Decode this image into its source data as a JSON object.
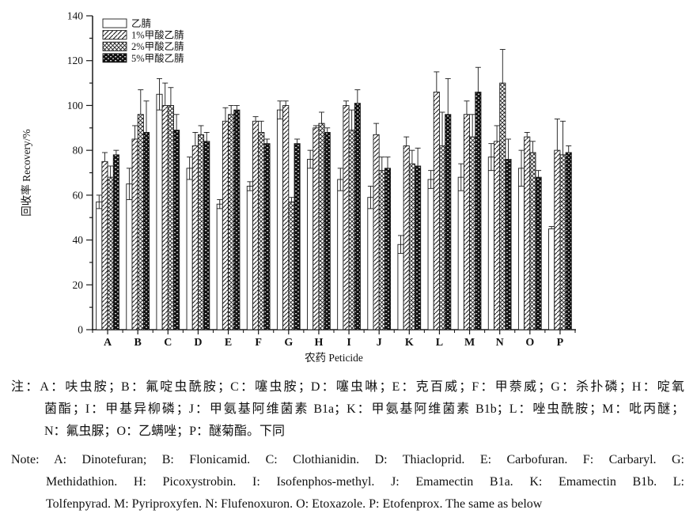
{
  "colors": {
    "ink": "#1a1a1a",
    "background": "#ffffff"
  },
  "chart_data": {
    "type": "bar",
    "title": "",
    "xlabel": "农药 Peticide",
    "ylabel": "回收率 Recovery/%",
    "ylim": [
      0,
      140
    ],
    "ytick_interval": 20,
    "ytick_minor_interval": 10,
    "grid": "off",
    "legend_position": "top-left-inside",
    "categories": [
      "A",
      "B",
      "C",
      "D",
      "E",
      "F",
      "G",
      "H",
      "I",
      "J",
      "K",
      "L",
      "M",
      "N",
      "O",
      "P"
    ],
    "series": [
      {
        "name": "乙腈",
        "pattern": "plain",
        "values": [
          57,
          65,
          105,
          72,
          56,
          64,
          98,
          76,
          67,
          59,
          38,
          67,
          68,
          77,
          72,
          45
        ],
        "errors": [
          3,
          7,
          7,
          5,
          2,
          2,
          4,
          4,
          5,
          5,
          4,
          4,
          6,
          6,
          8,
          1
        ]
      },
      {
        "name": "1%甲酸乙腈",
        "pattern": "diagonal",
        "values": [
          75,
          85,
          100,
          82,
          93,
          93,
          100,
          90,
          100,
          87,
          82,
          106,
          96,
          84,
          86,
          80
        ],
        "errors": [
          4,
          6,
          10,
          6,
          6,
          2,
          2,
          1,
          2,
          5,
          4,
          9,
          6,
          7,
          2,
          14
        ]
      },
      {
        "name": "2%甲酸乙腈",
        "pattern": "crosshatch",
        "values": [
          68,
          96,
          100,
          87,
          96,
          88,
          57,
          92,
          89,
          71,
          74,
          82,
          86,
          110,
          79,
          78
        ],
        "errors": [
          5,
          11,
          8,
          4,
          4,
          5,
          2,
          5,
          9,
          6,
          6,
          15,
          10,
          15,
          5,
          15
        ]
      },
      {
        "name": "5%甲酸乙腈",
        "pattern": "dense-dark",
        "values": [
          78,
          88,
          89,
          84,
          98,
          83,
          83,
          88,
          101,
          72,
          73,
          96,
          106,
          76,
          68,
          79
        ],
        "errors": [
          2,
          14,
          7,
          4,
          2,
          2,
          2,
          2,
          6,
          5,
          8,
          16,
          11,
          9,
          3,
          3
        ]
      }
    ]
  },
  "notes": {
    "cn_lines": [
      "注：A：呋虫胺；B：氟啶虫酰胺；C：噻虫胺；D：噻虫啉；E：克百威；F：甲萘威；G：杀扑磷；H：啶氧",
      "菌酯；I：甲基异柳磷；J：甲氨基阿维菌素 B1a；K：甲氨基阿维菌素 B1b；L：唑虫酰胺；M：吡丙醚；",
      "N：氟虫脲；O：乙螨唑；P：醚菊酯。下同"
    ],
    "en_lines": [
      "Note: A: Dinotefuran; B: Flonicamid. C: Clothianidin. D: Thiacloprid. E: Carbofuran. F: Carbaryl. G:",
      "Methidathion. H: Picoxystrobin. I: Isofenphos-methyl. J: Emamectin B1a. K: Emamectin B1b. L:",
      "Tolfenpyrad. M: Pyriproxyfen. N: Flufenoxuron. O: Etoxazole. P: Etofenprox. The same as below"
    ]
  }
}
